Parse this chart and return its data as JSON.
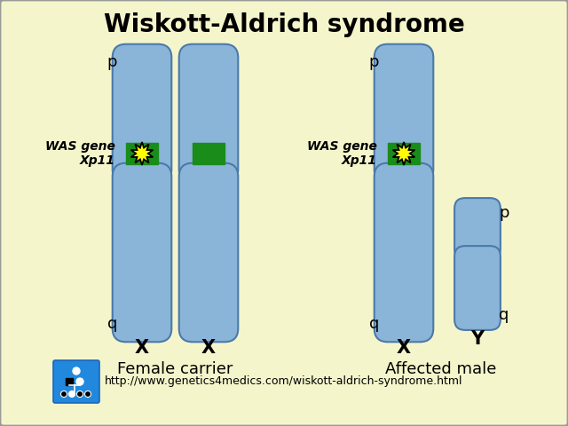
{
  "title": "Wiskott-Aldrich syndrome",
  "background_color": "#f5f5cc",
  "border_color": "#999999",
  "chromosome_color": "#8ab4d8",
  "chromosome_edge_color": "#4a7aaa",
  "green_band_color": "#1a8c1a",
  "url_text": "http://www.genetics4medics.com/wiskott-aldrich-syndrome.html",
  "female_label": "Female carrier",
  "male_label": "Affected male",
  "p_label": "p",
  "q_label": "q",
  "x_label": "X",
  "y_label": "Y",
  "was_line1": "WAS gene",
  "was_line2": "Xp11",
  "logo_color": "#2288dd",
  "title_fontsize": 20,
  "label_fontsize": 13,
  "sub_fontsize": 11,
  "url_fontsize": 9
}
